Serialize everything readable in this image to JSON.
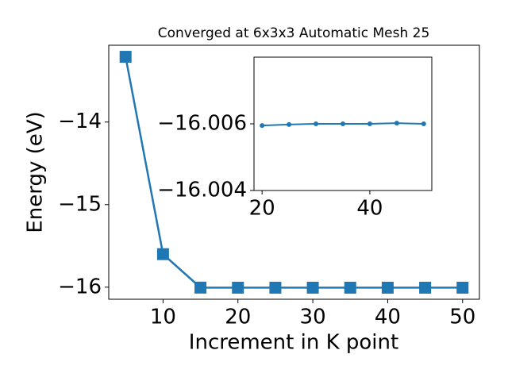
{
  "chart_data": [
    {
      "type": "line",
      "title": "Converged at 6x3x3 Automatic Mesh 25",
      "x_label": "Increment in K point",
      "y_label": "Energy (eV)",
      "x": [
        5,
        10,
        15,
        20,
        25,
        30,
        35,
        40,
        45,
        50
      ],
      "series": [
        {
          "color": "#1f77b4",
          "marker": "square",
          "values": [
            -13.21,
            -15.6,
            -16.005,
            -16.006,
            -16.006,
            -16.006,
            -16.006,
            -16.006,
            -16.006,
            -16.006
          ]
        }
      ],
      "xlim": [
        2.75,
        52.25
      ],
      "xticks": [
        10,
        20,
        30,
        40,
        50
      ],
      "ylim": [
        -16.146,
        -13.07
      ],
      "yticks": [
        {
          "value": -16,
          "label": "−16"
        },
        {
          "value": -15,
          "label": "−15"
        },
        {
          "value": -14,
          "label": "−14"
        }
      ]
    },
    {
      "type": "line",
      "x": [
        20,
        25,
        30,
        35,
        40,
        45,
        50
      ],
      "series": [
        {
          "color": "#1f77b4",
          "marker": "circle",
          "values": [
            -16.00595,
            -16.00598,
            -16.006,
            -16.006,
            -16.006,
            -16.00602,
            -16.006
          ]
        }
      ],
      "xlim": [
        18.5,
        51.5
      ],
      "xticks": [
        20,
        40
      ],
      "ylim": [
        -16.004,
        -16.008
      ],
      "yticks": [
        {
          "value": -16.004,
          "label": "−16.004"
        },
        {
          "value": -16.006,
          "label": "−16.006"
        }
      ]
    }
  ]
}
